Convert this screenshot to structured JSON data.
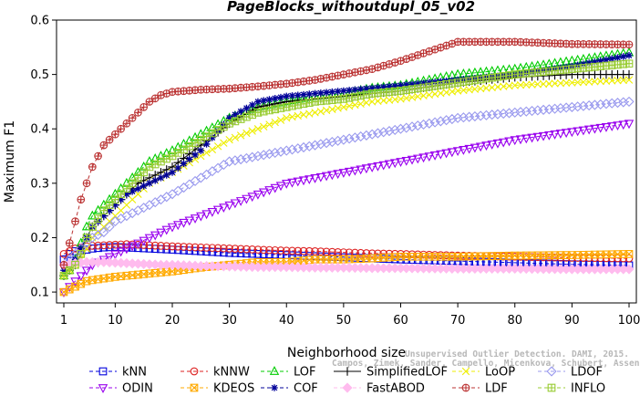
{
  "chart_data": {
    "type": "line",
    "title": "PageBlocks_withoutdupl_05_v02",
    "xlabel": "Neighborhood size",
    "ylabel": "Maximum F1",
    "xlim": [
      1,
      100
    ],
    "ylim": [
      0.08,
      0.6
    ],
    "xticks": [
      1,
      10,
      20,
      30,
      40,
      50,
      60,
      70,
      80,
      90,
      100
    ],
    "yticks": [
      0.1,
      0.2,
      0.3,
      0.4,
      0.5,
      0.6
    ],
    "x_sample_points": [
      1,
      2,
      3,
      4,
      5,
      6,
      8,
      10,
      12,
      14,
      16,
      18,
      20,
      25,
      30,
      35,
      40,
      45,
      50,
      55,
      60,
      70,
      80,
      90,
      100
    ],
    "series": [
      {
        "name": "kNN",
        "color": "#0000dd",
        "marker": "square",
        "dash": "4,3",
        "values": [
          0.16,
          0.17,
          0.175,
          0.176,
          0.178,
          0.18,
          0.182,
          0.183,
          0.182,
          0.181,
          0.18,
          0.179,
          0.178,
          0.175,
          0.172,
          0.17,
          0.168,
          0.166,
          0.164,
          0.162,
          0.16,
          0.157,
          0.154,
          0.151,
          0.149
        ]
      },
      {
        "name": "kNNW",
        "color": "#dd2222",
        "marker": "circle",
        "dash": "4,3",
        "values": [
          0.17,
          0.175,
          0.18,
          0.182,
          0.184,
          0.185,
          0.186,
          0.187,
          0.188,
          0.187,
          0.186,
          0.185,
          0.184,
          0.182,
          0.18,
          0.178,
          0.176,
          0.175,
          0.173,
          0.171,
          0.17,
          0.167,
          0.165,
          0.163,
          0.162
        ]
      },
      {
        "name": "LOF",
        "color": "#00cc00",
        "marker": "triangle-up",
        "dash": "4,3",
        "values": [
          0.13,
          0.14,
          0.16,
          0.19,
          0.22,
          0.24,
          0.26,
          0.28,
          0.3,
          0.32,
          0.34,
          0.35,
          0.36,
          0.39,
          0.42,
          0.44,
          0.45,
          0.46,
          0.465,
          0.475,
          0.48,
          0.5,
          0.51,
          0.525,
          0.54
        ]
      },
      {
        "name": "SimplifiedLOF",
        "color": "#000000",
        "marker": "plus",
        "dash": "",
        "values": [
          0.13,
          0.14,
          0.15,
          0.17,
          0.2,
          0.22,
          0.24,
          0.26,
          0.28,
          0.3,
          0.31,
          0.32,
          0.33,
          0.37,
          0.41,
          0.44,
          0.45,
          0.455,
          0.46,
          0.465,
          0.47,
          0.485,
          0.495,
          0.5,
          0.5
        ]
      },
      {
        "name": "LoOP",
        "color": "#eeee00",
        "marker": "x",
        "dash": "4,3",
        "values": [
          0.13,
          0.14,
          0.15,
          0.16,
          0.18,
          0.2,
          0.22,
          0.24,
          0.26,
          0.28,
          0.3,
          0.31,
          0.32,
          0.35,
          0.38,
          0.4,
          0.42,
          0.43,
          0.44,
          0.45,
          0.455,
          0.47,
          0.48,
          0.485,
          0.49
        ]
      },
      {
        "name": "LDOF",
        "color": "#9999ee",
        "marker": "diamond",
        "dash": "4,3",
        "values": [
          0.15,
          0.16,
          0.17,
          0.18,
          0.19,
          0.2,
          0.21,
          0.23,
          0.24,
          0.25,
          0.26,
          0.27,
          0.28,
          0.31,
          0.34,
          0.35,
          0.36,
          0.37,
          0.38,
          0.39,
          0.4,
          0.42,
          0.43,
          0.44,
          0.45
        ]
      },
      {
        "name": "ODIN",
        "color": "#9900ee",
        "marker": "triangle-down",
        "dash": "4,3",
        "values": [
          0.1,
          0.11,
          0.12,
          0.13,
          0.14,
          0.15,
          0.16,
          0.17,
          0.18,
          0.19,
          0.2,
          0.21,
          0.22,
          0.24,
          0.26,
          0.28,
          0.3,
          0.31,
          0.32,
          0.33,
          0.34,
          0.36,
          0.38,
          0.395,
          0.41
        ]
      },
      {
        "name": "KDEOS",
        "color": "#ffaa00",
        "marker": "boxtimes",
        "dash": "4,3",
        "values": [
          0.1,
          0.105,
          0.11,
          0.115,
          0.12,
          0.122,
          0.125,
          0.128,
          0.13,
          0.132,
          0.134,
          0.136,
          0.138,
          0.145,
          0.15,
          0.155,
          0.155,
          0.16,
          0.16,
          0.162,
          0.165,
          0.165,
          0.167,
          0.168,
          0.17
        ]
      },
      {
        "name": "COF",
        "color": "#000099",
        "marker": "asterisk",
        "dash": "4,3",
        "values": [
          0.14,
          0.15,
          0.16,
          0.18,
          0.2,
          0.22,
          0.24,
          0.26,
          0.28,
          0.29,
          0.3,
          0.31,
          0.32,
          0.36,
          0.42,
          0.45,
          0.46,
          0.465,
          0.47,
          0.475,
          0.48,
          0.49,
          0.5,
          0.515,
          0.535
        ]
      },
      {
        "name": "FastABOD",
        "color": "#ffbbee",
        "marker": "diamond-filled",
        "dash": "4,3",
        "values": [
          0.15,
          0.152,
          0.153,
          0.154,
          0.155,
          0.155,
          0.155,
          0.154,
          0.153,
          0.152,
          0.151,
          0.15,
          0.15,
          0.148,
          0.147,
          0.146,
          0.146,
          0.145,
          0.145,
          0.144,
          0.144,
          0.143,
          0.143,
          0.142,
          0.142
        ]
      },
      {
        "name": "LDF",
        "color": "#bb3333",
        "marker": "circleplus",
        "dash": "4,3",
        "values": [
          0.15,
          0.19,
          0.23,
          0.27,
          0.3,
          0.33,
          0.37,
          0.39,
          0.41,
          0.43,
          0.45,
          0.462,
          0.468,
          0.472,
          0.474,
          0.478,
          0.483,
          0.49,
          0.5,
          0.51,
          0.525,
          0.56,
          0.56,
          0.556,
          0.555
        ]
      },
      {
        "name": "INFLO",
        "color": "#99cc33",
        "marker": "boxplus",
        "dash": "4,3",
        "values": [
          0.13,
          0.14,
          0.15,
          0.17,
          0.2,
          0.22,
          0.25,
          0.27,
          0.29,
          0.31,
          0.33,
          0.34,
          0.35,
          0.38,
          0.41,
          0.43,
          0.44,
          0.45,
          0.455,
          0.465,
          0.47,
          0.485,
          0.5,
          0.51,
          0.52
        ]
      }
    ],
    "legend_position": "bottom",
    "legend_rows": [
      [
        "kNN",
        "kNNW",
        "LOF",
        "SimplifiedLOF",
        "LoOP",
        "LDOF"
      ],
      [
        "ODIN",
        "KDEOS",
        "COF",
        "FastABOD",
        "LDF",
        "INFLO"
      ]
    ],
    "watermark_lines": [
      "Unsupervised Outlier Detection. DAMI, 2015.",
      "Campos, Zimek, Sander, Campello, Micenkova, Schubert, Assent, Houle"
    ]
  }
}
